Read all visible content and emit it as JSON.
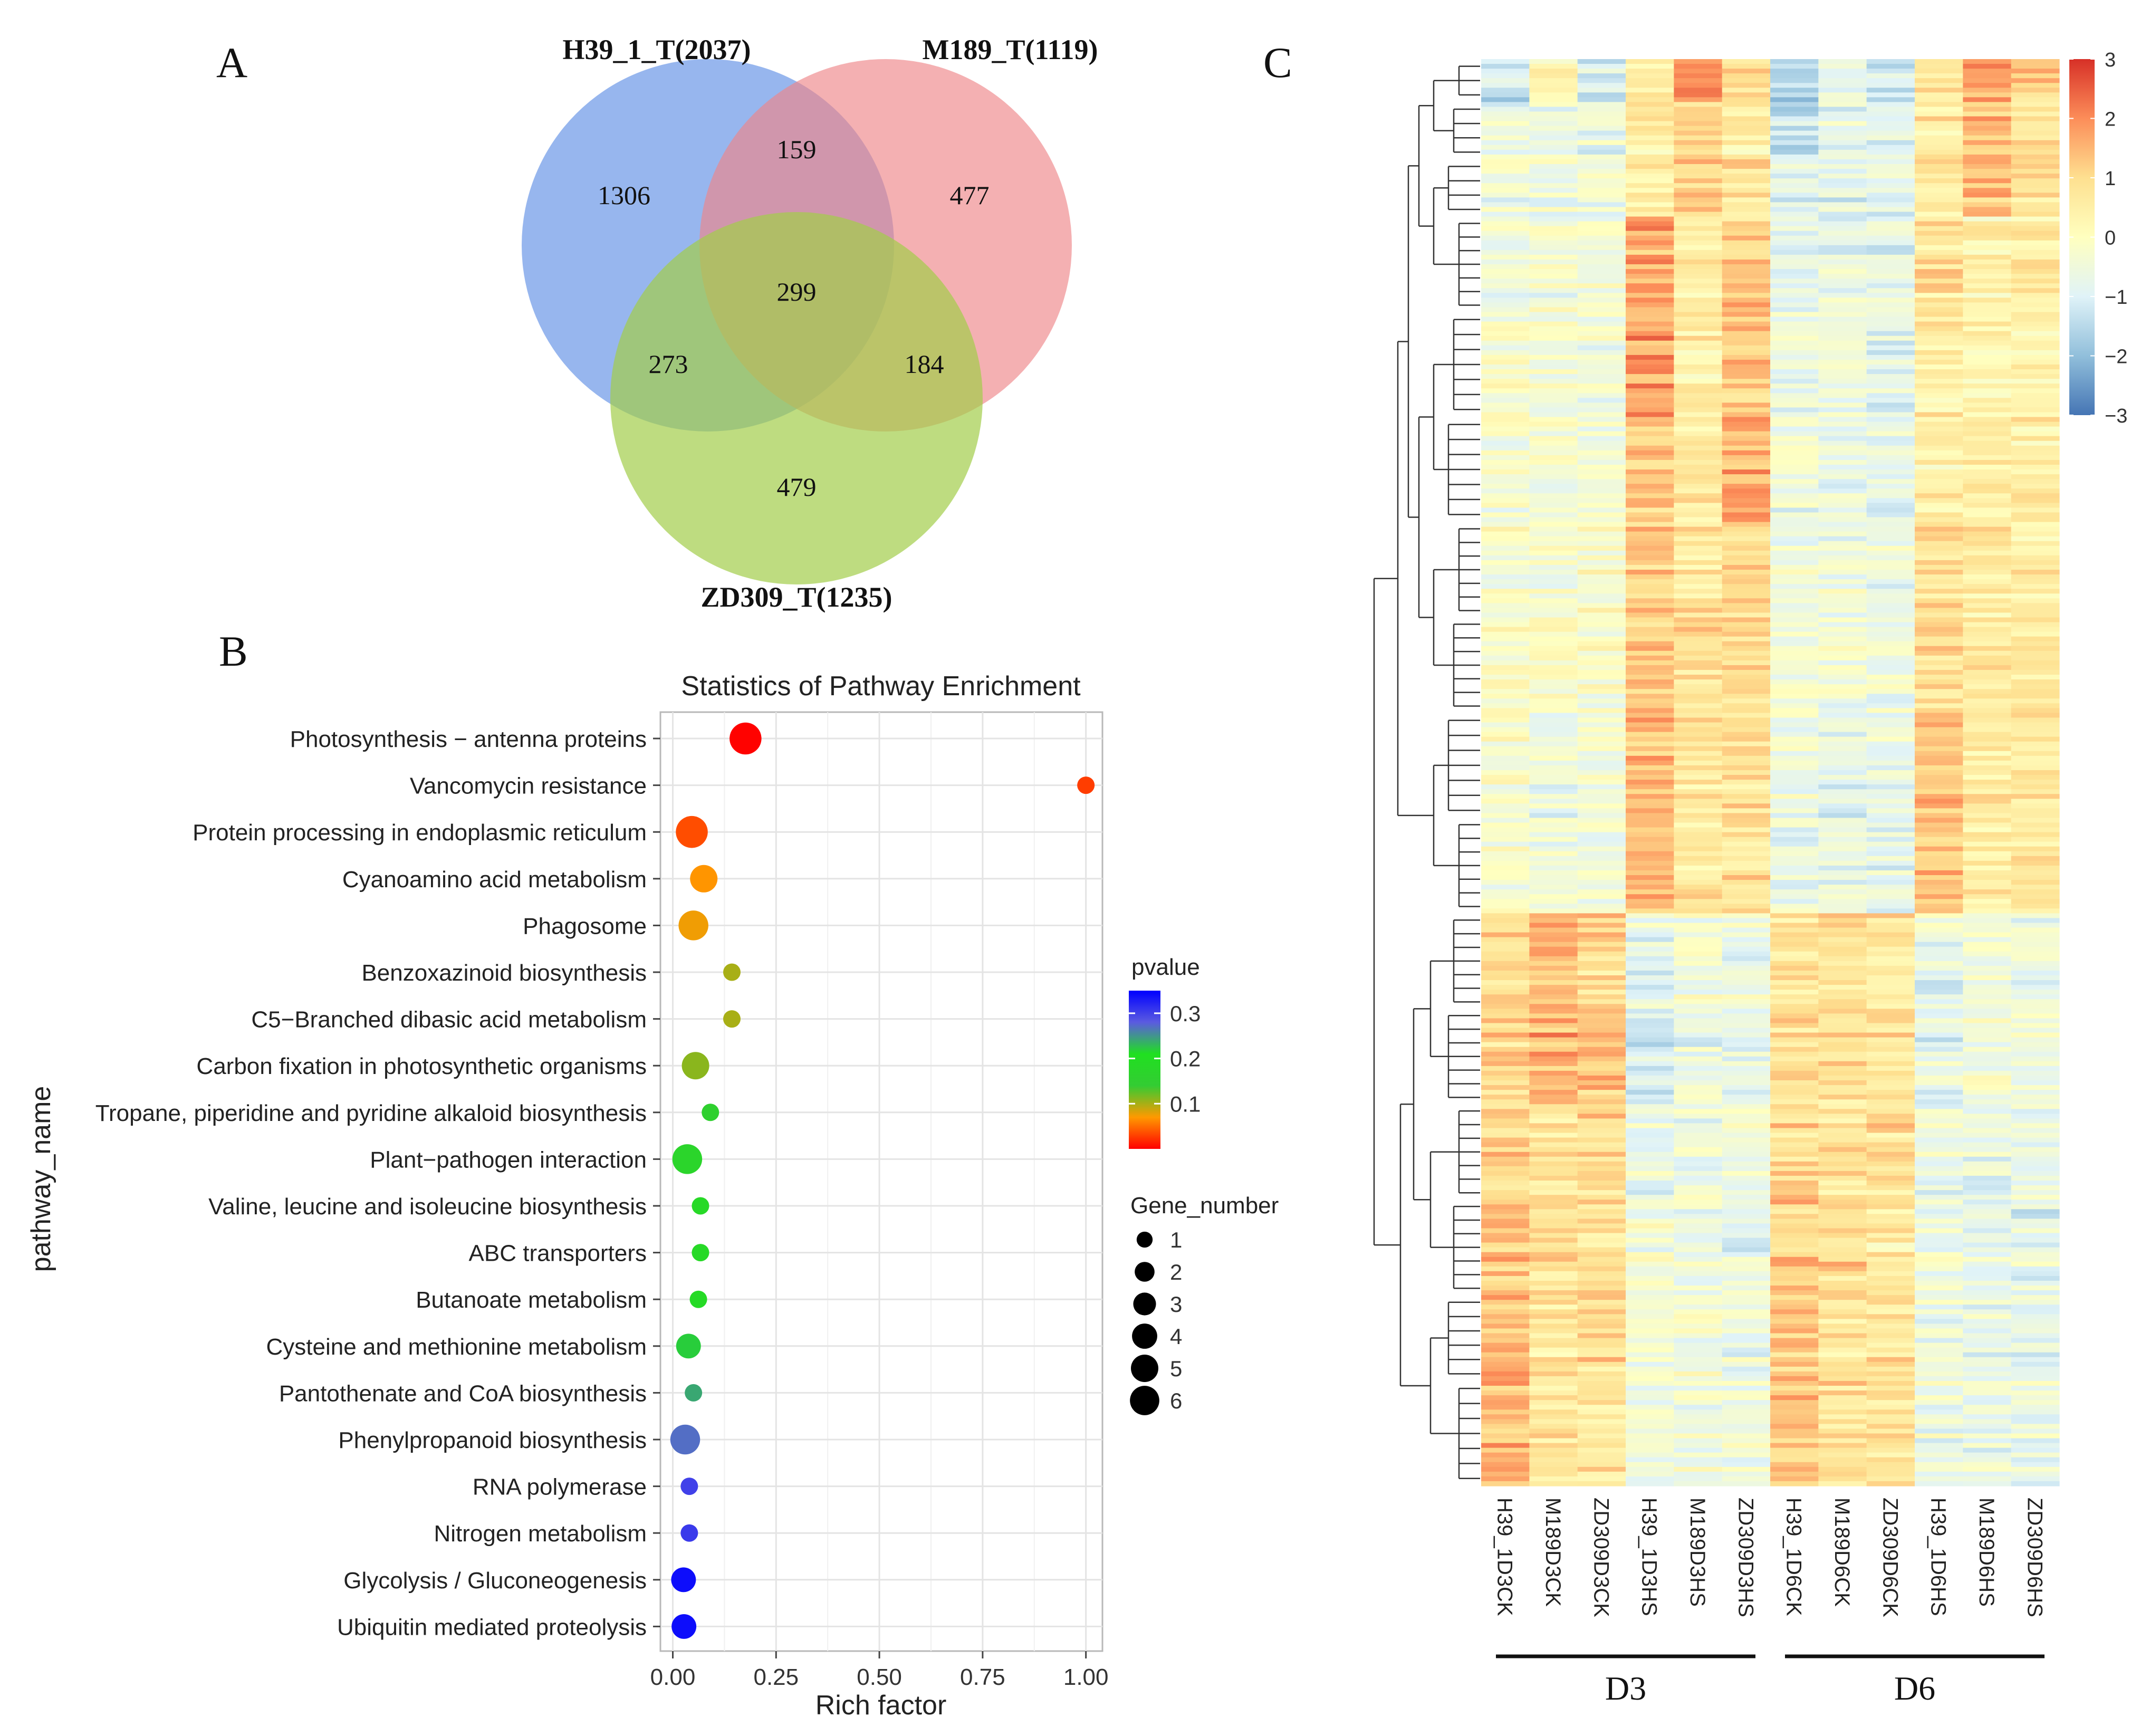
{
  "panels": {
    "a_label": "A",
    "b_label": "B",
    "c_label": "C"
  },
  "chart_data": [
    {
      "type": "venn",
      "panel": "A",
      "sets": [
        {
          "name": "H39_1_T(2037)",
          "color": "#6f9ae8"
        },
        {
          "name": "M189_T(1119)",
          "color": "#ee8589"
        },
        {
          "name": "ZD309_T(1235)",
          "color": "#a3cd4a"
        }
      ],
      "regions": {
        "h39_only": "1306",
        "m189_only": "477",
        "zd309_only": "479",
        "h39_m189": "159",
        "h39_zd309": "273",
        "m189_zd309": "184",
        "all_three": "299"
      }
    },
    {
      "type": "scatter",
      "panel": "B",
      "title": "Statistics of Pathway Enrichment",
      "xlabel": "Rich factor",
      "ylabel": "pathway_name",
      "xlim": [
        -0.03,
        1.04
      ],
      "xticks": [
        "0.00",
        "0.25",
        "0.50",
        "0.75",
        "1.00"
      ],
      "grid": true,
      "pathways": [
        {
          "name": "Photosynthesis − antenna proteins",
          "rich": 0.176,
          "pvalue": 0.001,
          "genes": 6
        },
        {
          "name": "Vancomycin resistance",
          "rich": 1.0,
          "pvalue": 0.028,
          "genes": 1
        },
        {
          "name": "Protein processing in endoplasmic reticulum",
          "rich": 0.046,
          "pvalue": 0.035,
          "genes": 6
        },
        {
          "name": "Cyanoamino acid metabolism",
          "rich": 0.075,
          "pvalue": 0.068,
          "genes": 4
        },
        {
          "name": "Phagosome",
          "rich": 0.05,
          "pvalue": 0.075,
          "genes": 5
        },
        {
          "name": "Benzoxazinoid biosynthesis",
          "rich": 0.143,
          "pvalue": 0.1,
          "genes": 1
        },
        {
          "name": "C5−Branched dibasic acid metabolism",
          "rich": 0.143,
          "pvalue": 0.1,
          "genes": 1
        },
        {
          "name": "Carbon fixation in photosynthetic organisms",
          "rich": 0.055,
          "pvalue": 0.11,
          "genes": 4
        },
        {
          "name": "Tropane, piperidine and pyridine alkaloid biosynthesis",
          "rich": 0.091,
          "pvalue": 0.155,
          "genes": 1
        },
        {
          "name": "Plant−pathogen interaction",
          "rich": 0.035,
          "pvalue": 0.17,
          "genes": 5
        },
        {
          "name": "Valine, leucine and isoleucine biosynthesis",
          "rich": 0.067,
          "pvalue": 0.185,
          "genes": 1
        },
        {
          "name": "ABC transporters",
          "rich": 0.067,
          "pvalue": 0.185,
          "genes": 1
        },
        {
          "name": "Butanoate metabolism",
          "rich": 0.062,
          "pvalue": 0.19,
          "genes": 1
        },
        {
          "name": "Cysteine and methionine metabolism",
          "rich": 0.038,
          "pvalue": 0.22,
          "genes": 3
        },
        {
          "name": "Pantothenate and CoA biosynthesis",
          "rich": 0.05,
          "pvalue": 0.24,
          "genes": 1
        },
        {
          "name": "Phenylpropanoid biosynthesis",
          "rich": 0.03,
          "pvalue": 0.27,
          "genes": 5
        },
        {
          "name": "RNA polymerase",
          "rich": 0.04,
          "pvalue": 0.3,
          "genes": 1
        },
        {
          "name": "Nitrogen metabolism",
          "rich": 0.04,
          "pvalue": 0.305,
          "genes": 1
        },
        {
          "name": "Glycolysis / Gluconeogenesis",
          "rich": 0.026,
          "pvalue": 0.34,
          "genes": 3
        },
        {
          "name": "Ubiquitin mediated proteolysis",
          "rich": 0.027,
          "pvalue": 0.34,
          "genes": 3
        }
      ],
      "color_legend": {
        "title": "pvalue",
        "ticks": [
          "0.3",
          "0.2",
          "0.1"
        ],
        "tick_values": [
          0.3,
          0.2,
          0.1
        ],
        "range": [
          0.0,
          0.35
        ],
        "colors": [
          "#0000ff",
          "#5b5be0",
          "#20e020",
          "#33cc33",
          "#ff9900",
          "#ff0000"
        ]
      },
      "size_legend": {
        "title": "Gene_number",
        "labels": [
          "1",
          "2",
          "3",
          "4",
          "5",
          "6"
        ],
        "values": [
          1,
          2,
          3,
          4,
          5,
          6
        ]
      }
    },
    {
      "type": "heatmap",
      "panel": "C",
      "columns": [
        "H39_1D3CK",
        "M189D3CK",
        "ZD309D3CK",
        "H39_1D3HS",
        "M189D3HS",
        "ZD309D3HS",
        "H39_1D6CK",
        "M189D6CK",
        "ZD309D6CK",
        "H39_1D6HS",
        "M189D6HS",
        "ZD309D6HS"
      ],
      "groups": [
        {
          "label": "D3",
          "columns": [
            0,
            5
          ]
        },
        {
          "label": "D6",
          "columns": [
            6,
            11
          ]
        }
      ],
      "scale": {
        "ticks": [
          "3",
          "2",
          "1",
          "0",
          "−1",
          "−2",
          "−3"
        ],
        "tick_values": [
          3,
          2,
          1,
          0,
          -1,
          -2,
          -3
        ],
        "colors": [
          "#4575b4",
          "#91bfdb",
          "#e0f3f8",
          "#ffffbf",
          "#fee090",
          "#fc8d59",
          "#d73027"
        ]
      },
      "row_count": 299,
      "row_blocks": [
        {
          "rows": 9,
          "means": [
            -1.2,
            0.2,
            -1.0,
            0.7,
            2.0,
            1.0,
            -1.6,
            -0.6,
            -1.1,
            0.8,
            1.9,
            1.2
          ]
        },
        {
          "rows": 12,
          "means": [
            -0.7,
            -0.5,
            -0.6,
            0.6,
            1.1,
            0.5,
            -1.2,
            -0.8,
            -1.0,
            0.6,
            1.3,
            0.7
          ]
        },
        {
          "rows": 12,
          "means": [
            -0.5,
            -0.6,
            -0.6,
            0.5,
            1.0,
            0.7,
            -0.9,
            -0.8,
            -0.9,
            0.6,
            1.3,
            0.6
          ]
        },
        {
          "rows": 20,
          "means": [
            -0.5,
            -0.4,
            -0.5,
            1.6,
            0.4,
            1.2,
            -0.8,
            -0.7,
            -0.9,
            0.8,
            0.4,
            0.5
          ]
        },
        {
          "rows": 22,
          "means": [
            -0.2,
            -0.3,
            -0.4,
            1.8,
            0.5,
            1.4,
            -0.6,
            -0.5,
            -0.8,
            0.6,
            0.4,
            0.4
          ]
        },
        {
          "rows": 22,
          "means": [
            -0.3,
            -0.3,
            -0.4,
            1.2,
            0.6,
            1.6,
            -0.5,
            -0.7,
            -0.8,
            0.4,
            0.5,
            0.5
          ]
        },
        {
          "rows": 20,
          "means": [
            -0.2,
            -0.2,
            -0.1,
            1.1,
            0.7,
            1.1,
            -0.5,
            -0.4,
            -0.6,
            1.0,
            0.6,
            0.5
          ]
        },
        {
          "rows": 20,
          "means": [
            -0.1,
            0.0,
            -0.2,
            1.2,
            0.8,
            1.0,
            -0.4,
            -0.4,
            -0.5,
            0.9,
            0.7,
            0.6
          ]
        },
        {
          "rows": 22,
          "means": [
            -0.2,
            -0.6,
            -0.3,
            1.5,
            0.7,
            0.9,
            -0.5,
            -0.8,
            -0.6,
            1.3,
            0.5,
            0.6
          ]
        },
        {
          "rows": 20,
          "means": [
            -0.3,
            -0.4,
            -0.4,
            1.4,
            0.6,
            0.8,
            -0.6,
            -0.6,
            -0.7,
            1.4,
            0.6,
            0.8
          ]
        },
        {
          "rows": 20,
          "means": [
            1.1,
            1.4,
            1.0,
            -0.7,
            -0.4,
            -0.6,
            0.7,
            0.8,
            0.7,
            -0.7,
            -0.5,
            -0.6
          ]
        },
        {
          "rows": 20,
          "means": [
            1.0,
            1.6,
            1.2,
            -1.0,
            -0.6,
            -0.8,
            0.8,
            0.9,
            0.7,
            -0.8,
            -0.5,
            -0.5
          ]
        },
        {
          "rows": 20,
          "means": [
            1.1,
            0.7,
            1.0,
            -0.6,
            -0.5,
            -0.5,
            1.0,
            0.8,
            0.9,
            -0.6,
            -0.7,
            -0.6
          ]
        },
        {
          "rows": 20,
          "means": [
            1.3,
            0.8,
            0.8,
            -0.3,
            -0.6,
            -0.7,
            1.2,
            1.0,
            0.6,
            -0.4,
            -0.8,
            -0.8
          ]
        },
        {
          "rows": 18,
          "means": [
            1.5,
            0.6,
            0.9,
            -0.4,
            -0.3,
            -0.6,
            1.3,
            0.8,
            0.7,
            -0.5,
            -0.6,
            -0.7
          ]
        },
        {
          "rows": 22,
          "means": [
            1.4,
            0.8,
            0.7,
            -0.4,
            -0.4,
            -0.5,
            1.4,
            0.9,
            0.8,
            -0.5,
            -0.5,
            -0.6
          ]
        }
      ]
    }
  ]
}
